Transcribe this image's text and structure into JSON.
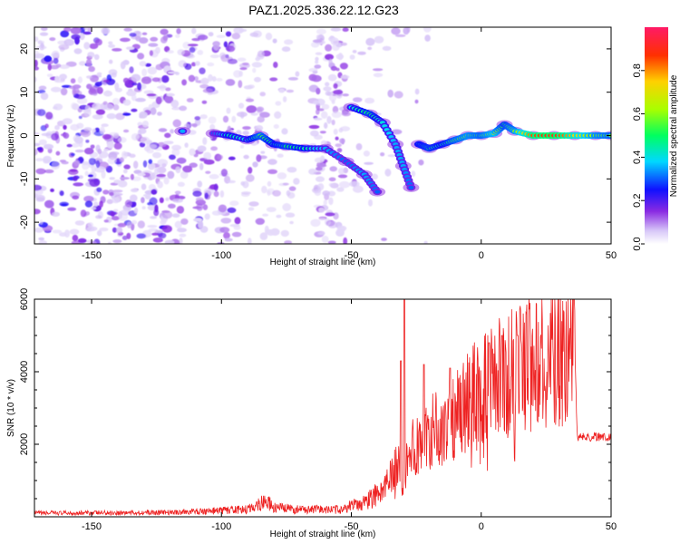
{
  "title": "PAZ1.2025.336.22.12.G23",
  "chart_data": [
    {
      "type": "heatmap",
      "name": "spectrogram",
      "xlabel": "Height of straight line (km)",
      "ylabel": "Frequency (Hz)",
      "xlim": [
        -172,
        50
      ],
      "ylim": [
        -25,
        25
      ],
      "x_ticks": [
        -150,
        -100,
        -50,
        0,
        50
      ],
      "x_tick_labels": [
        "-150",
        "-100",
        "-50",
        "0",
        "50"
      ],
      "y_ticks": [
        -20,
        -10,
        0,
        10,
        20
      ],
      "y_tick_labels": [
        "-20",
        "-10",
        "0",
        "10",
        "20"
      ],
      "colorbar": {
        "label": "Normalized spectral amplitude",
        "range": [
          0,
          1
        ],
        "ticks": [
          0,
          0.2,
          0.4,
          0.6,
          0.8
        ],
        "tick_labels": [
          "0.0",
          "0.2",
          "0.4",
          "0.6",
          "0.8"
        ]
      },
      "ridge": [
        {
          "x": -115,
          "y": 1,
          "amp": 0.35
        },
        {
          "x": -103,
          "y": 0.5,
          "amp": 0.3
        },
        {
          "x": -97,
          "y": 0,
          "amp": 0.45
        },
        {
          "x": -90,
          "y": -1,
          "amp": 0.4
        },
        {
          "x": -85,
          "y": 0,
          "amp": 0.55
        },
        {
          "x": -80,
          "y": -2,
          "amp": 0.45
        },
        {
          "x": -75,
          "y": -2.5,
          "amp": 0.5
        },
        {
          "x": -68,
          "y": -3,
          "amp": 0.45
        },
        {
          "x": -60,
          "y": -3,
          "amp": 0.35
        },
        {
          "x": -52,
          "y": -6,
          "amp": 0.3
        },
        {
          "x": -45,
          "y": -9,
          "amp": 0.35
        },
        {
          "x": -40,
          "y": -13,
          "amp": 0.3
        },
        {
          "x": -50,
          "y": 6.5,
          "amp": 0.4
        },
        {
          "x": -43,
          "y": 5,
          "amp": 0.5
        },
        {
          "x": -38,
          "y": 3,
          "amp": 0.4
        },
        {
          "x": -33,
          "y": -2,
          "amp": 0.35
        },
        {
          "x": -30,
          "y": -7,
          "amp": 0.35
        },
        {
          "x": -27,
          "y": -12,
          "amp": 0.3
        },
        {
          "x": -24,
          "y": -2,
          "amp": 0.45
        },
        {
          "x": -20,
          "y": -3,
          "amp": 0.5
        },
        {
          "x": -15,
          "y": -2,
          "amp": 0.45
        },
        {
          "x": -10,
          "y": -1,
          "amp": 0.55
        },
        {
          "x": -5,
          "y": 0,
          "amp": 0.6
        },
        {
          "x": 0,
          "y": 0,
          "amp": 0.55
        },
        {
          "x": 5,
          "y": 0.5,
          "amp": 0.65
        },
        {
          "x": 9,
          "y": 2.5,
          "amp": 0.5
        },
        {
          "x": 13,
          "y": 1,
          "amp": 0.6
        },
        {
          "x": 20,
          "y": 0,
          "amp": 0.85
        },
        {
          "x": 28,
          "y": 0,
          "amp": 0.9
        },
        {
          "x": 36,
          "y": 0,
          "amp": 0.75
        },
        {
          "x": 44,
          "y": 0,
          "amp": 0.6
        },
        {
          "x": 50,
          "y": 0,
          "amp": 0.55
        }
      ]
    },
    {
      "type": "line",
      "name": "snr",
      "xlabel": "Height of straight line (km)",
      "ylabel": "SNR (10 * v/v)",
      "xlim": [
        -172,
        50
      ],
      "ylim": [
        0,
        6000
      ],
      "x_ticks": [
        -150,
        -100,
        -50,
        0,
        50
      ],
      "x_tick_labels": [
        "-150",
        "-100",
        "-50",
        "0",
        "50"
      ],
      "y_ticks": [
        2000,
        4000,
        6000
      ],
      "y_tick_labels": [
        "2000",
        "4000",
        "6000"
      ],
      "color": "#ee2222",
      "envelope": {
        "x": [
          -172,
          -120,
          -90,
          -83,
          -80,
          -70,
          -55,
          -45,
          -38,
          -34,
          -32,
          -30,
          -28,
          -25,
          -20,
          -15,
          -10,
          -5,
          0,
          5,
          10,
          15,
          20,
          25,
          30,
          36,
          37,
          40,
          50
        ],
        "y": [
          100,
          120,
          200,
          450,
          250,
          200,
          200,
          400,
          700,
          1200,
          1500,
          900,
          1800,
          2000,
          2300,
          2500,
          2800,
          3200,
          3500,
          3700,
          3900,
          4100,
          4300,
          4400,
          4500,
          4600,
          2200,
          2200,
          2200
        ]
      },
      "peaks": [
        {
          "x": -29.5,
          "y": 6000
        },
        {
          "x": -31,
          "y": 4300
        },
        {
          "x": -22,
          "y": 4200
        },
        {
          "x": -12,
          "y": 4100
        },
        {
          "x": 8,
          "y": 5000
        },
        {
          "x": 14,
          "y": 5000
        },
        {
          "x": 3,
          "y": 4800
        }
      ]
    }
  ]
}
